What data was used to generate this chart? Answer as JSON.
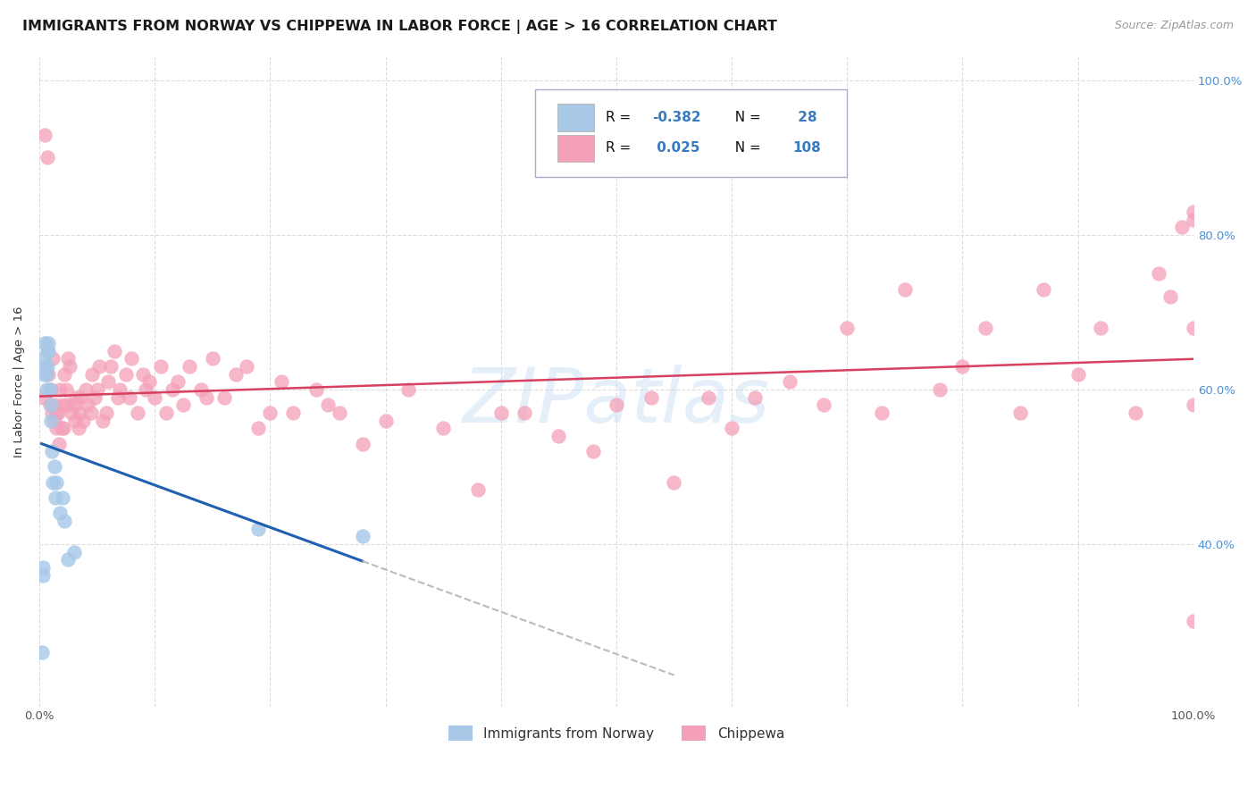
{
  "title": "IMMIGRANTS FROM NORWAY VS CHIPPEWA IN LABOR FORCE | AGE > 16 CORRELATION CHART",
  "source": "Source: ZipAtlas.com",
  "ylabel": "In Labor Force | Age > 16",
  "norway_R": -0.382,
  "norway_N": 28,
  "chippewa_R": 0.025,
  "chippewa_N": 108,
  "norway_color": "#a8c8e8",
  "chippewa_color": "#f4a0b8",
  "norway_line_color": "#2060b0",
  "chippewa_line_color": "#d84060",
  "dashed_line_color": "#bbbbbb",
  "watermark": "ZIPatlas",
  "norway_x": [
    0.002,
    0.003,
    0.003,
    0.004,
    0.004,
    0.005,
    0.005,
    0.006,
    0.006,
    0.007,
    0.007,
    0.008,
    0.008,
    0.009,
    0.01,
    0.01,
    0.011,
    0.012,
    0.013,
    0.014,
    0.015,
    0.018,
    0.02,
    0.022,
    0.025,
    0.03,
    0.19,
    0.28
  ],
  "norway_y": [
    0.26,
    0.36,
    0.37,
    0.62,
    0.64,
    0.63,
    0.66,
    0.6,
    0.62,
    0.63,
    0.65,
    0.66,
    0.65,
    0.6,
    0.56,
    0.58,
    0.52,
    0.48,
    0.5,
    0.46,
    0.48,
    0.44,
    0.46,
    0.43,
    0.38,
    0.39,
    0.42,
    0.41
  ],
  "chippewa_x": [
    0.004,
    0.005,
    0.007,
    0.008,
    0.009,
    0.01,
    0.011,
    0.012,
    0.013,
    0.014,
    0.015,
    0.015,
    0.016,
    0.017,
    0.018,
    0.019,
    0.02,
    0.021,
    0.022,
    0.023,
    0.024,
    0.025,
    0.026,
    0.028,
    0.03,
    0.031,
    0.032,
    0.034,
    0.035,
    0.036,
    0.038,
    0.04,
    0.042,
    0.045,
    0.046,
    0.048,
    0.05,
    0.052,
    0.055,
    0.058,
    0.06,
    0.062,
    0.065,
    0.068,
    0.07,
    0.075,
    0.078,
    0.08,
    0.085,
    0.09,
    0.092,
    0.095,
    0.1,
    0.105,
    0.11,
    0.115,
    0.12,
    0.125,
    0.13,
    0.14,
    0.145,
    0.15,
    0.16,
    0.17,
    0.18,
    0.19,
    0.2,
    0.21,
    0.22,
    0.24,
    0.25,
    0.26,
    0.28,
    0.3,
    0.32,
    0.35,
    0.38,
    0.4,
    0.42,
    0.45,
    0.48,
    0.5,
    0.53,
    0.55,
    0.58,
    0.6,
    0.62,
    0.65,
    0.68,
    0.7,
    0.73,
    0.75,
    0.78,
    0.8,
    0.82,
    0.85,
    0.87,
    0.9,
    0.92,
    0.95,
    0.97,
    0.98,
    0.99,
    1.0,
    1.0,
    1.0,
    1.0,
    1.0
  ],
  "chippewa_y": [
    0.59,
    0.93,
    0.9,
    0.62,
    0.58,
    0.6,
    0.57,
    0.64,
    0.56,
    0.58,
    0.55,
    0.57,
    0.57,
    0.53,
    0.6,
    0.55,
    0.58,
    0.55,
    0.62,
    0.6,
    0.58,
    0.64,
    0.63,
    0.57,
    0.58,
    0.56,
    0.59,
    0.55,
    0.57,
    0.59,
    0.56,
    0.6,
    0.58,
    0.57,
    0.62,
    0.59,
    0.6,
    0.63,
    0.56,
    0.57,
    0.61,
    0.63,
    0.65,
    0.59,
    0.6,
    0.62,
    0.59,
    0.64,
    0.57,
    0.62,
    0.6,
    0.61,
    0.59,
    0.63,
    0.57,
    0.6,
    0.61,
    0.58,
    0.63,
    0.6,
    0.59,
    0.64,
    0.59,
    0.62,
    0.63,
    0.55,
    0.57,
    0.61,
    0.57,
    0.6,
    0.58,
    0.57,
    0.53,
    0.56,
    0.6,
    0.55,
    0.47,
    0.57,
    0.57,
    0.54,
    0.52,
    0.58,
    0.59,
    0.48,
    0.59,
    0.55,
    0.59,
    0.61,
    0.58,
    0.68,
    0.57,
    0.73,
    0.6,
    0.63,
    0.68,
    0.57,
    0.73,
    0.62,
    0.68,
    0.57,
    0.75,
    0.72,
    0.81,
    0.82,
    0.68,
    0.83,
    0.58,
    0.3
  ],
  "xlim": [
    0.0,
    1.0
  ],
  "ylim": [
    0.19,
    1.03
  ],
  "x_ticks": [
    0.0,
    1.0
  ],
  "x_tick_labels": [
    "0.0%",
    "100.0%"
  ],
  "y_ticks": [
    0.4,
    0.6,
    0.8,
    1.0
  ],
  "y_tick_labels": [
    "40.0%",
    "60.0%",
    "80.0%",
    "100.0%"
  ],
  "background_color": "#ffffff",
  "grid_color": "#dddddd",
  "title_fontsize": 11.5,
  "axis_label_fontsize": 9.5,
  "tick_fontsize": 9.5,
  "right_tick_color": "#4a90d9",
  "legend_text_color": "#111111",
  "legend_value_color": "#3a7abf",
  "legend_border_color": "#aaaacc"
}
